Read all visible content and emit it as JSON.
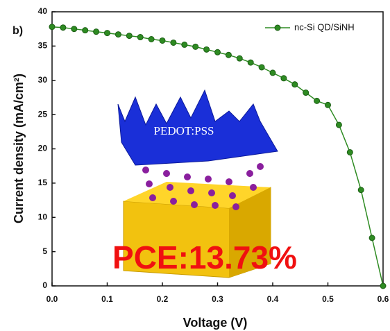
{
  "chart_data": {
    "type": "line",
    "panel_label": "b)",
    "x_label": "Voltage (V)",
    "y_label": "Current density (mA/cm²)",
    "x": [
      0,
      0.02,
      0.04,
      0.06,
      0.08,
      0.1,
      0.12,
      0.14,
      0.16,
      0.18,
      0.2,
      0.22,
      0.24,
      0.26,
      0.28,
      0.3,
      0.32,
      0.34,
      0.36,
      0.38,
      0.4,
      0.42,
      0.44,
      0.46,
      0.48,
      0.5,
      0.52,
      0.54,
      0.56,
      0.58,
      0.6
    ],
    "series": [
      {
        "name": "nc-Si QD/SiNH",
        "color": "#2e8b22",
        "values": [
          37.8,
          37.7,
          37.5,
          37.3,
          37.1,
          36.9,
          36.7,
          36.5,
          36.3,
          36.0,
          35.8,
          35.5,
          35.2,
          34.9,
          34.5,
          34.1,
          33.7,
          33.2,
          32.6,
          31.9,
          31.1,
          30.3,
          29.4,
          28.2,
          27.0,
          26.4,
          23.5,
          19.5,
          14.0,
          7.0,
          0
        ]
      }
    ],
    "xlim": [
      0,
      0.6
    ],
    "ylim": [
      0,
      40
    ],
    "xticks": [
      {
        "value": 0,
        "label": "0.0"
      },
      0.1,
      0.2,
      0.3,
      0.4,
      0.5,
      0.6
    ],
    "yticks": [
      0,
      5,
      10,
      15,
      20,
      25,
      30,
      35,
      40
    ],
    "legend": "upper right",
    "annotations": [
      "PCE:13.73%"
    ],
    "inset_label": "PEDOT:PSS"
  }
}
